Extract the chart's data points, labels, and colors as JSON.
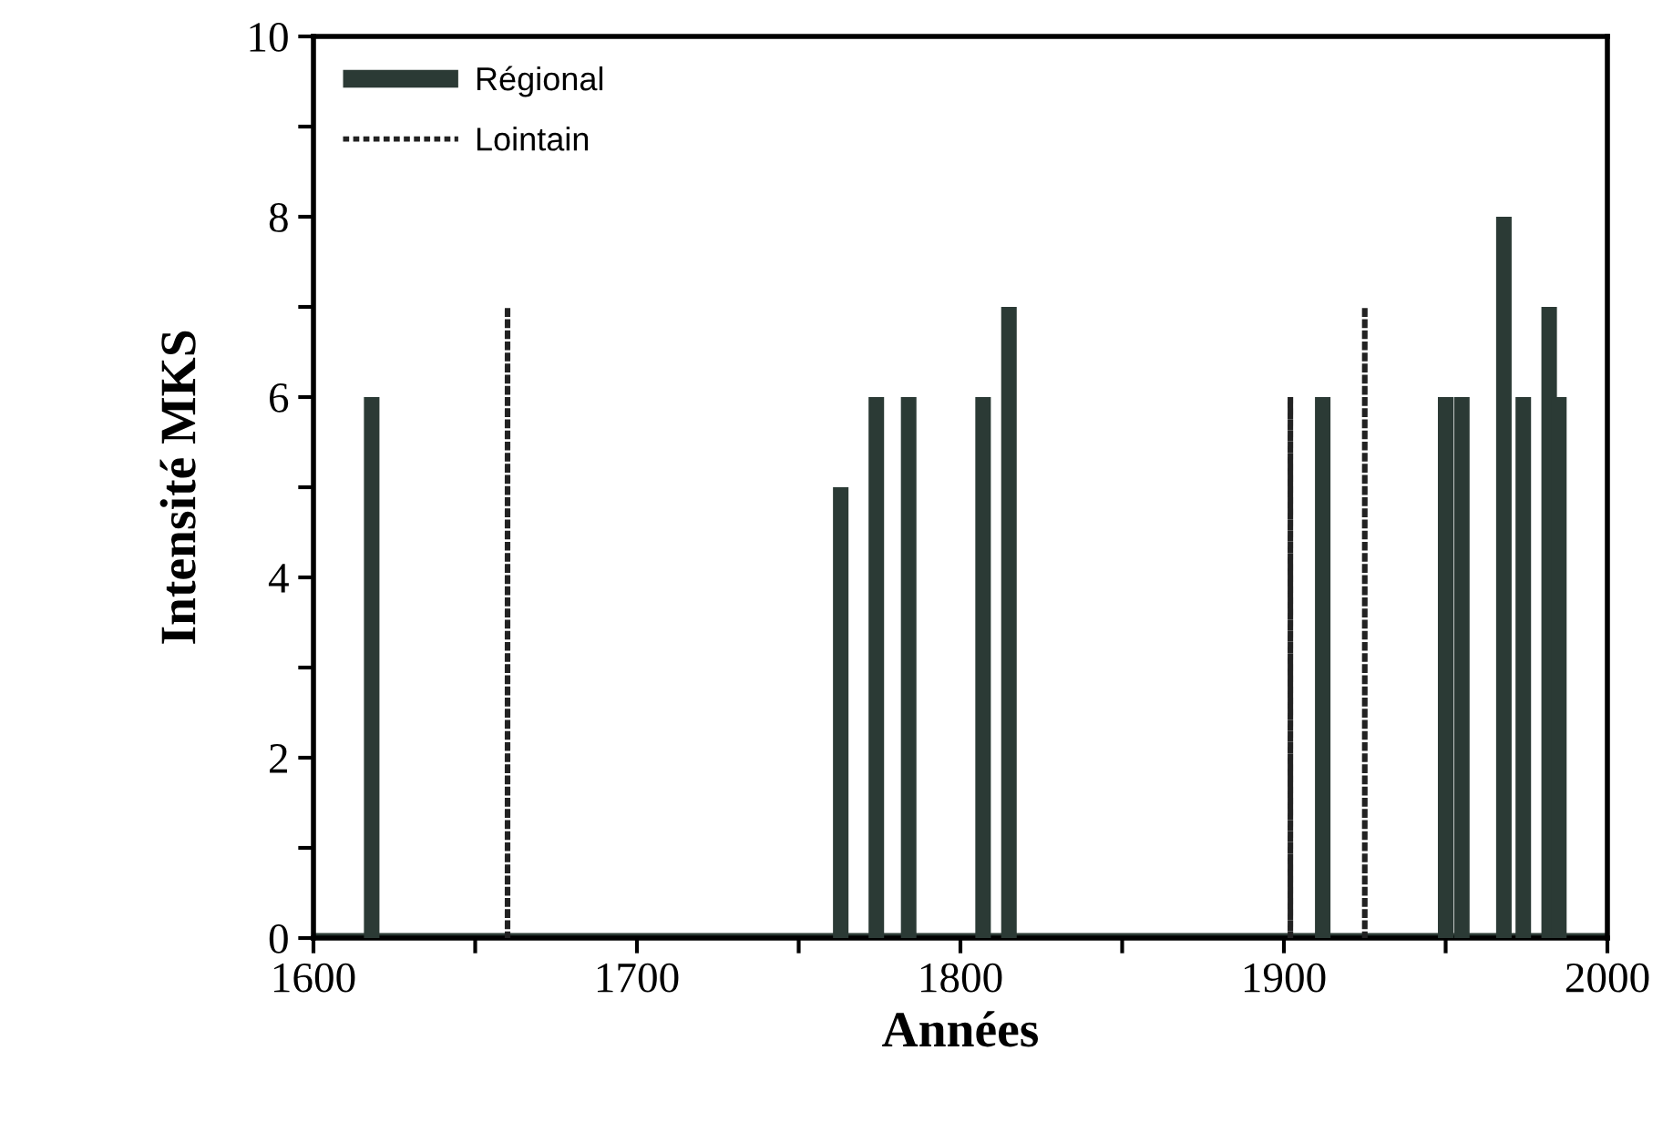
{
  "chart_data": {
    "type": "bar",
    "xlabel": "Années",
    "ylabel": "Intensité MKS",
    "xlim": [
      1600,
      2000
    ],
    "xticks": [
      {
        "value": 1600,
        "label": "1600"
      },
      {
        "value": 1650,
        "label": null
      },
      {
        "value": 1700,
        "label": "1700"
      },
      {
        "value": 1750,
        "label": null
      },
      {
        "value": 1800,
        "label": "1800"
      },
      {
        "value": 1850,
        "label": null
      },
      {
        "value": 1900,
        "label": "1900"
      },
      {
        "value": 1950,
        "label": null
      },
      {
        "value": 2000,
        "label": "2000"
      }
    ],
    "ylim": [
      0,
      10
    ],
    "yticks": [
      0,
      {
        "value": 1,
        "label": null
      },
      2,
      {
        "value": 3,
        "label": null
      },
      4,
      {
        "value": 5,
        "label": null
      },
      6,
      {
        "value": 7,
        "label": null
      },
      8,
      {
        "value": 9,
        "label": null
      },
      10
    ],
    "legend": "top left",
    "grid": false,
    "series": [
      {
        "name": "Régional",
        "color": "#2b3a35",
        "line_style": "solid",
        "x": [
          1618,
          1763,
          1774,
          1784,
          1807,
          1815,
          1912,
          1950,
          1955,
          1968,
          1974,
          1982,
          1985
        ],
        "values": [
          6,
          5,
          6,
          6,
          6,
          7,
          6,
          6,
          6,
          8,
          6,
          7,
          6
        ]
      },
      {
        "name": "Lointain",
        "color": "#222222",
        "line_style": "dashed",
        "x": [
          1660,
          1902,
          1925
        ],
        "values": [
          7,
          6,
          7
        ]
      }
    ]
  }
}
